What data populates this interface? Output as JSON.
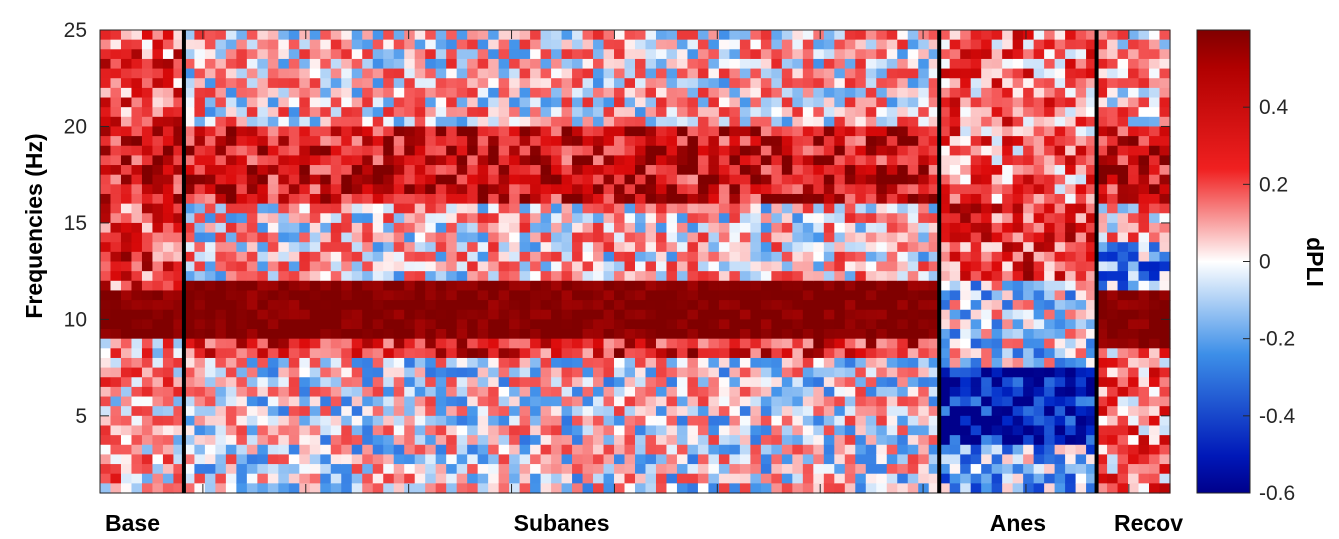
{
  "chart_data": {
    "type": "heatmap",
    "ylabel": "Frequencies (Hz)",
    "ylim": [
      1,
      25
    ],
    "y_ticks": [
      "5",
      "10",
      "15",
      "20",
      "25"
    ],
    "y_tick_values": [
      5,
      10,
      15,
      20,
      25
    ],
    "colorbar": {
      "label": "dPLI",
      "range": [
        -0.6,
        0.6
      ],
      "ticks": [
        "0.4",
        "0.2",
        "0",
        "-0.2",
        "-0.4",
        "-0.6"
      ],
      "tick_values": [
        0.4,
        0.2,
        0,
        -0.2,
        -0.4,
        -0.6
      ],
      "colormap": "blue-white-red",
      "low_color": "#00008b",
      "mid_color": "#ffffff",
      "high_color": "#800000"
    },
    "segments": [
      {
        "label": "Base",
        "epochs": 8
      },
      {
        "label": "Subanes",
        "epochs": 72
      },
      {
        "label": "Anes",
        "epochs": 15
      },
      {
        "label": "Recov",
        "epochs": 7
      }
    ],
    "band_profiles": [
      {
        "segment": "Base",
        "freq_from": 1,
        "freq_to": 9,
        "dpli": 0.1
      },
      {
        "segment": "Base",
        "freq_from": 9,
        "freq_to": 11.5,
        "dpli": 0.6
      },
      {
        "segment": "Base",
        "freq_from": 11.5,
        "freq_to": 16,
        "dpli": 0.3
      },
      {
        "segment": "Base",
        "freq_from": 16,
        "freq_to": 20,
        "dpli": 0.4
      },
      {
        "segment": "Base",
        "freq_from": 20,
        "freq_to": 25,
        "dpli": 0.25
      },
      {
        "segment": "Subanes",
        "freq_from": 1,
        "freq_to": 8,
        "dpli": 0.0
      },
      {
        "segment": "Subanes",
        "freq_from": 8,
        "freq_to": 9,
        "dpli": 0.35
      },
      {
        "segment": "Subanes",
        "freq_from": 9,
        "freq_to": 11.8,
        "dpli": 0.6
      },
      {
        "segment": "Subanes",
        "freq_from": 11.8,
        "freq_to": 16,
        "dpli": 0.05
      },
      {
        "segment": "Subanes",
        "freq_from": 16,
        "freq_to": 20,
        "dpli": 0.4
      },
      {
        "segment": "Subanes",
        "freq_from": 20,
        "freq_to": 25,
        "dpli": 0.05
      },
      {
        "segment": "Anes",
        "freq_from": 1,
        "freq_to": 3.5,
        "dpli": -0.15
      },
      {
        "segment": "Anes",
        "freq_from": 3.5,
        "freq_to": 7.5,
        "dpli": -0.5
      },
      {
        "segment": "Anes",
        "freq_from": 7.5,
        "freq_to": 12,
        "dpli": -0.05
      },
      {
        "segment": "Anes",
        "freq_from": 12,
        "freq_to": 16,
        "dpli": 0.3
      },
      {
        "segment": "Anes",
        "freq_from": 16,
        "freq_to": 25,
        "dpli": 0.2
      },
      {
        "segment": "Recov",
        "freq_from": 1,
        "freq_to": 8.5,
        "dpli": 0.2
      },
      {
        "segment": "Recov",
        "freq_from": 8.5,
        "freq_to": 11.5,
        "dpli": 0.6
      },
      {
        "segment": "Recov",
        "freq_from": 11.5,
        "freq_to": 14,
        "dpli": -0.2
      },
      {
        "segment": "Recov",
        "freq_from": 14,
        "freq_to": 16,
        "dpli": 0.1
      },
      {
        "segment": "Recov",
        "freq_from": 16,
        "freq_to": 20,
        "dpli": 0.4
      },
      {
        "segment": "Recov",
        "freq_from": 20,
        "freq_to": 25,
        "dpli": 0.1
      }
    ],
    "grid": false,
    "legend": "colorbar-right"
  }
}
